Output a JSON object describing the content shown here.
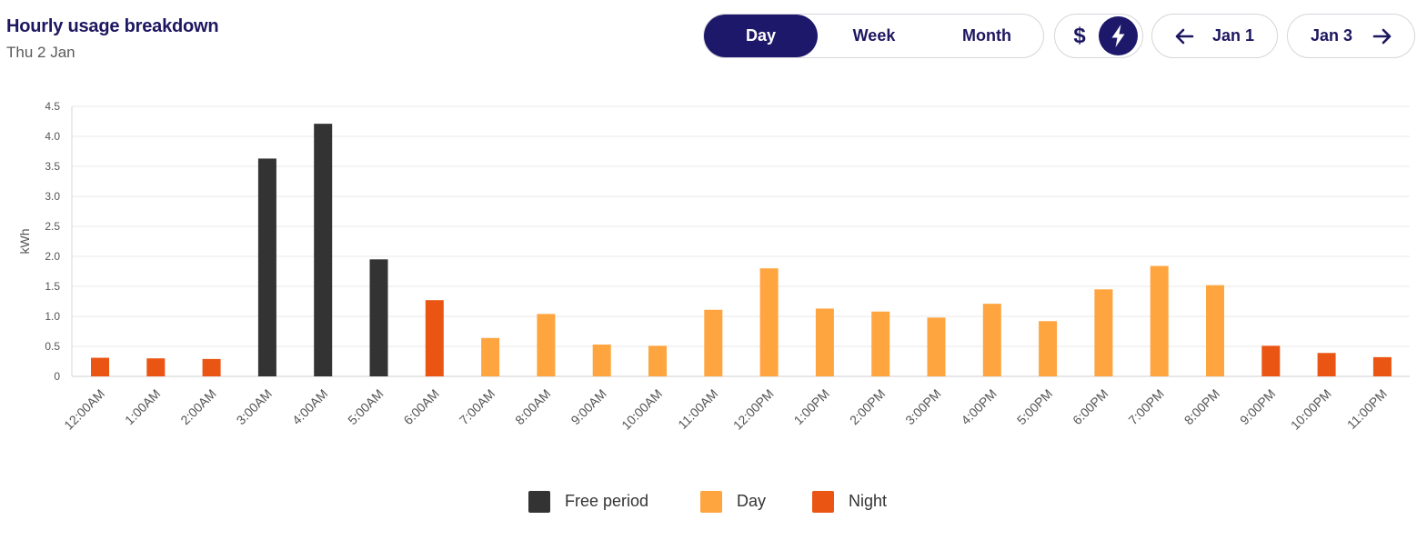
{
  "header": {
    "title": "Hourly usage breakdown",
    "subtitle": "Thu 2 Jan"
  },
  "period_tabs": [
    {
      "label": "Day",
      "active": true
    },
    {
      "label": "Week",
      "active": false
    },
    {
      "label": "Month",
      "active": false
    }
  ],
  "unit_toggle": {
    "dollar_label": "$",
    "selected": "energy",
    "bolt_icon": "lightning-icon"
  },
  "nav": {
    "prev_label": "Jan 1",
    "next_label": "Jan 3"
  },
  "colors": {
    "accent": "#1e186a",
    "free": "#333333",
    "day": "#ffa53f",
    "night": "#ea5514"
  },
  "chart_data": {
    "type": "bar",
    "ylabel": "kWh",
    "ylim": [
      0,
      4.5
    ],
    "yticks": [
      "0",
      "0.5",
      "1.0",
      "1.5",
      "2.0",
      "2.5",
      "3.0",
      "3.5",
      "4.0",
      "4.5"
    ],
    "grid": true,
    "legend_position": "bottom",
    "categories": [
      "12:00AM",
      "1:00AM",
      "2:00AM",
      "3:00AM",
      "4:00AM",
      "5:00AM",
      "6:00AM",
      "7:00AM",
      "8:00AM",
      "9:00AM",
      "10:00AM",
      "11:00AM",
      "12:00PM",
      "1:00PM",
      "2:00PM",
      "3:00PM",
      "4:00PM",
      "5:00PM",
      "6:00PM",
      "7:00PM",
      "8:00PM",
      "9:00PM",
      "10:00PM",
      "11:00PM"
    ],
    "values": [
      0.31,
      0.3,
      0.29,
      3.63,
      4.21,
      1.95,
      1.27,
      0.64,
      1.04,
      0.53,
      0.51,
      1.11,
      1.8,
      1.13,
      1.08,
      0.98,
      1.21,
      0.92,
      1.45,
      1.84,
      1.52,
      0.51,
      0.39,
      0.32
    ],
    "periods": [
      "Night",
      "Night",
      "Night",
      "Free period",
      "Free period",
      "Free period",
      "Night",
      "Day",
      "Day",
      "Day",
      "Day",
      "Day",
      "Day",
      "Day",
      "Day",
      "Day",
      "Day",
      "Day",
      "Day",
      "Day",
      "Day",
      "Night",
      "Night",
      "Night"
    ],
    "legend": [
      {
        "name": "Free period",
        "color": "#333333"
      },
      {
        "name": "Day",
        "color": "#ffa53f"
      },
      {
        "name": "Night",
        "color": "#ea5514"
      }
    ]
  }
}
